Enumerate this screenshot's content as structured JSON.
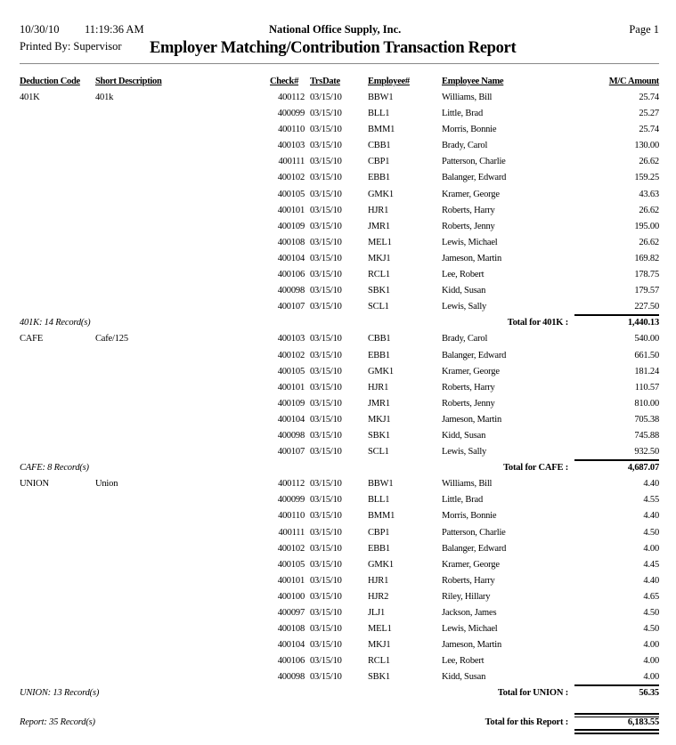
{
  "header": {
    "date": "10/30/10",
    "time": "11:19:36 AM",
    "company": "National Office Supply, Inc.",
    "page": "Page 1",
    "printed_by": "Printed By: Supervisor",
    "title": "Employer Matching/Contribution Transaction Report"
  },
  "columns": {
    "deduction_code": "Deduction Code",
    "short_description": "Short Description",
    "check": "Check#",
    "trs_date": "TrsDate",
    "employee": "Employee#",
    "employee_name": "Employee Name",
    "amount": "M/C Amount"
  },
  "groups": [
    {
      "code": "401K",
      "description": "401k",
      "records": "401K: 14 Record(s)",
      "total_label": "Total for 401K :",
      "total": "1,440.13",
      "rows": [
        [
          "400112",
          "03/15/10",
          "BBW1",
          "Williams, Bill",
          "25.74"
        ],
        [
          "400099",
          "03/15/10",
          "BLL1",
          "Little, Brad",
          "25.27"
        ],
        [
          "400110",
          "03/15/10",
          "BMM1",
          "Morris, Bonnie",
          "25.74"
        ],
        [
          "400103",
          "03/15/10",
          "CBB1",
          "Brady, Carol",
          "130.00"
        ],
        [
          "400111",
          "03/15/10",
          "CBP1",
          "Patterson, Charlie",
          "26.62"
        ],
        [
          "400102",
          "03/15/10",
          "EBB1",
          "Balanger, Edward",
          "159.25"
        ],
        [
          "400105",
          "03/15/10",
          "GMK1",
          "Kramer, George",
          "43.63"
        ],
        [
          "400101",
          "03/15/10",
          "HJR1",
          "Roberts, Harry",
          "26.62"
        ],
        [
          "400109",
          "03/15/10",
          "JMR1",
          "Roberts, Jenny",
          "195.00"
        ],
        [
          "400108",
          "03/15/10",
          "MEL1",
          "Lewis, Michael",
          "26.62"
        ],
        [
          "400104",
          "03/15/10",
          "MKJ1",
          "Jameson, Martin",
          "169.82"
        ],
        [
          "400106",
          "03/15/10",
          "RCL1",
          "Lee, Robert",
          "178.75"
        ],
        [
          "400098",
          "03/15/10",
          "SBK1",
          "Kidd, Susan",
          "179.57"
        ],
        [
          "400107",
          "03/15/10",
          "SCL1",
          "Lewis, Sally",
          "227.50"
        ]
      ]
    },
    {
      "code": "CAFE",
      "description": "Cafe/125",
      "records": "CAFE: 8 Record(s)",
      "total_label": "Total for CAFE :",
      "total": "4,687.07",
      "rows": [
        [
          "400103",
          "03/15/10",
          "CBB1",
          "Brady, Carol",
          "540.00"
        ],
        [
          "400102",
          "03/15/10",
          "EBB1",
          "Balanger, Edward",
          "661.50"
        ],
        [
          "400105",
          "03/15/10",
          "GMK1",
          "Kramer, George",
          "181.24"
        ],
        [
          "400101",
          "03/15/10",
          "HJR1",
          "Roberts, Harry",
          "110.57"
        ],
        [
          "400109",
          "03/15/10",
          "JMR1",
          "Roberts, Jenny",
          "810.00"
        ],
        [
          "400104",
          "03/15/10",
          "MKJ1",
          "Jameson, Martin",
          "705.38"
        ],
        [
          "400098",
          "03/15/10",
          "SBK1",
          "Kidd, Susan",
          "745.88"
        ],
        [
          "400107",
          "03/15/10",
          "SCL1",
          "Lewis, Sally",
          "932.50"
        ]
      ]
    },
    {
      "code": "UNION",
      "description": "Union",
      "records": "UNION: 13 Record(s)",
      "total_label": "Total for UNION :",
      "total": "56.35",
      "rows": [
        [
          "400112",
          "03/15/10",
          "BBW1",
          "Williams, Bill",
          "4.40"
        ],
        [
          "400099",
          "03/15/10",
          "BLL1",
          "Little, Brad",
          "4.55"
        ],
        [
          "400110",
          "03/15/10",
          "BMM1",
          "Morris, Bonnie",
          "4.40"
        ],
        [
          "400111",
          "03/15/10",
          "CBP1",
          "Patterson, Charlie",
          "4.50"
        ],
        [
          "400102",
          "03/15/10",
          "EBB1",
          "Balanger, Edward",
          "4.00"
        ],
        [
          "400105",
          "03/15/10",
          "GMK1",
          "Kramer, George",
          "4.45"
        ],
        [
          "400101",
          "03/15/10",
          "HJR1",
          "Roberts, Harry",
          "4.40"
        ],
        [
          "400100",
          "03/15/10",
          "HJR2",
          "Riley, Hillary",
          "4.65"
        ],
        [
          "400097",
          "03/15/10",
          "JLJ1",
          "Jackson, James",
          "4.50"
        ],
        [
          "400108",
          "03/15/10",
          "MEL1",
          "Lewis, Michael",
          "4.50"
        ],
        [
          "400104",
          "03/15/10",
          "MKJ1",
          "Jameson, Martin",
          "4.00"
        ],
        [
          "400106",
          "03/15/10",
          "RCL1",
          "Lee, Robert",
          "4.00"
        ],
        [
          "400098",
          "03/15/10",
          "SBK1",
          "Kidd, Susan",
          "4.00"
        ]
      ]
    }
  ],
  "report_total": {
    "records": "Report: 35 Record(s)",
    "label": "Total for this Report :",
    "total": "6,183.55"
  }
}
